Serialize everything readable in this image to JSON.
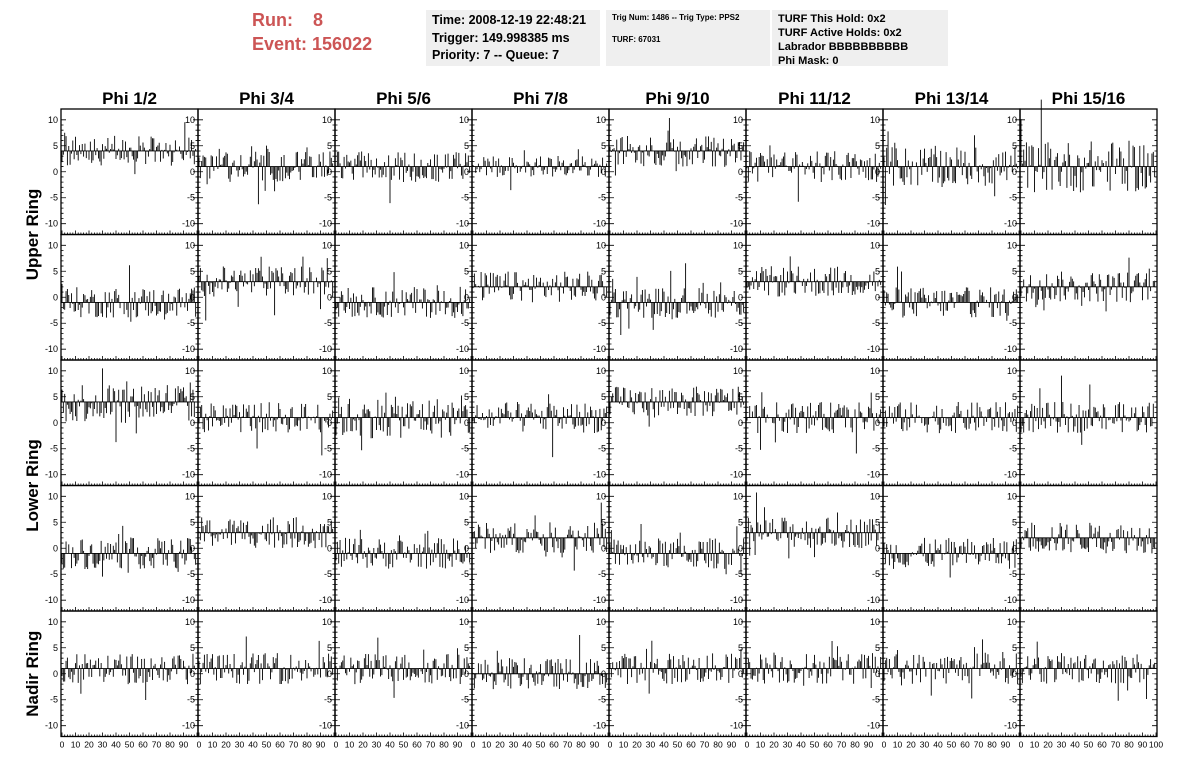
{
  "header": {
    "run_label": "Run:",
    "run_value": "8",
    "event_label": "Event:",
    "event_value": "156022",
    "time_line": "Time: 2008-12-19 22:48:21",
    "trigger_line": "Trigger: 149.998385 ms",
    "priority_line": "Priority: 7 -- Queue: 7",
    "trig_line": "Trig Num: 1486 -- Trig Type: PPS2",
    "turf_line": "TURF: 67031",
    "hold_line": "TURF This Hold: 0x2",
    "active_holds_line": "TURF Active Holds: 0x2",
    "labrador_line": "Labrador BBBBBBBBBB",
    "phi_mask_line": "Phi Mask: 0"
  },
  "chart_data": {
    "type": "line",
    "columns": [
      "Phi 1/2",
      "Phi 3/4",
      "Phi 5/6",
      "Phi 7/8",
      "Phi 9/10",
      "Phi 11/12",
      "Phi 13/14",
      "Phi 15/16"
    ],
    "row_groups": [
      {
        "label": "Upper Ring",
        "rows": [
          0,
          1
        ]
      },
      {
        "label": "Lower Ring",
        "rows": [
          2,
          3
        ]
      },
      {
        "label": "Nadir Ring",
        "rows": [
          4
        ]
      }
    ],
    "xlim": [
      0,
      100
    ],
    "ylim": [
      -11.5,
      11.5
    ],
    "ytick_labels": [
      "10",
      "5",
      "0",
      "-5",
      "-10"
    ],
    "ytick_values": [
      10,
      5,
      0,
      -5,
      -10
    ],
    "xtick_labels": [
      "0",
      "10",
      "20",
      "30",
      "40",
      "50",
      "60",
      "70",
      "80",
      "90",
      "100"
    ],
    "xtick_values": [
      0,
      10,
      20,
      30,
      40,
      50,
      60,
      70,
      80,
      90,
      100
    ],
    "samples_per_trace": 100,
    "trace_levels": [
      [
        4,
        1,
        1,
        1,
        4,
        1,
        1,
        1
      ],
      [
        -1,
        3,
        -1,
        2,
        -1,
        3,
        -1,
        2
      ],
      [
        4,
        1,
        1,
        1,
        4,
        1,
        1,
        1
      ],
      [
        -1,
        3,
        -1,
        2,
        -1,
        3,
        -1,
        2
      ],
      [
        1,
        1,
        1,
        0,
        1,
        1,
        1,
        1
      ]
    ],
    "trace_spread": [
      [
        3,
        3,
        3,
        2,
        3,
        3,
        4,
        5
      ],
      [
        3,
        3,
        3,
        3,
        3,
        3,
        3,
        3
      ],
      [
        4,
        3,
        4,
        3,
        3,
        3,
        3,
        3
      ],
      [
        3,
        3,
        3,
        3,
        3,
        3,
        3,
        3
      ],
      [
        3,
        3,
        3,
        3,
        3,
        3,
        3,
        3
      ]
    ]
  }
}
